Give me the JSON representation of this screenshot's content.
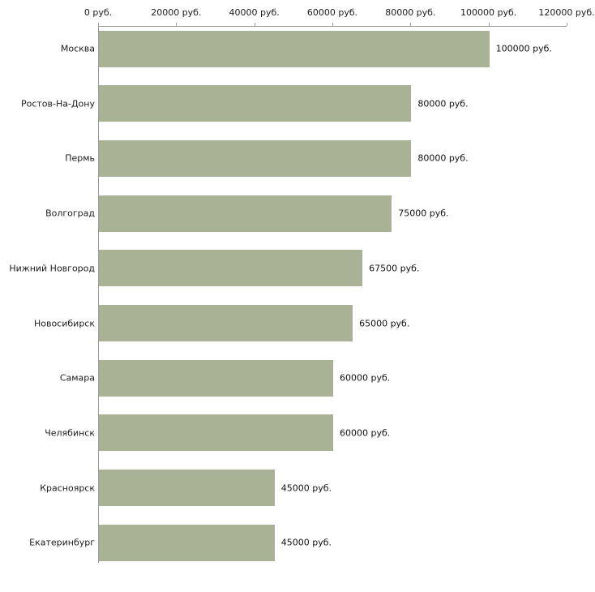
{
  "chart_data": {
    "type": "bar",
    "orientation": "horizontal",
    "title": "",
    "xlabel": "",
    "ylabel": "",
    "categories": [
      "Москва",
      "Ростов-На-Дону",
      "Пермь",
      "Волгоград",
      "Нижний Новгород",
      "Новосибирск",
      "Самара",
      "Челябинск",
      "Красноярск",
      "Екатеринбург"
    ],
    "values": [
      100000,
      80000,
      80000,
      75000,
      67500,
      65000,
      60000,
      60000,
      45000,
      45000
    ],
    "value_labels": [
      "100000 руб.",
      "80000 руб.",
      "80000 руб.",
      "75000 руб.",
      "67500 руб.",
      "65000 руб.",
      "60000 руб.",
      "60000 руб.",
      "45000 руб.",
      "45000 руб."
    ],
    "x_ticks": [
      0,
      20000,
      40000,
      60000,
      80000,
      100000,
      120000
    ],
    "x_tick_labels": [
      "0 руб.",
      "20000 руб.",
      "40000 руб.",
      "60000 руб.",
      "80000 руб.",
      "100000 руб.",
      "120000 руб."
    ],
    "xlim": [
      0,
      120000
    ],
    "grid": false,
    "legend": false,
    "axis_position": "top",
    "bar_color": "#a9b294",
    "axis_color": "#9a9a9a",
    "text_color": "#1c1c1c"
  }
}
